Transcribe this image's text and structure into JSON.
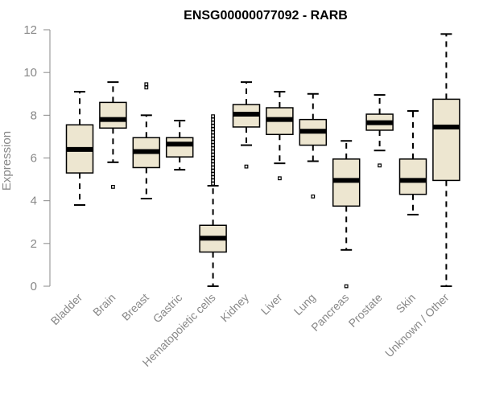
{
  "chart_data": {
    "type": "boxplot",
    "title": "ENSG00000077092 - RARB",
    "xlabel": "",
    "ylabel": "Expression",
    "ylim": [
      0,
      12
    ],
    "yticks": [
      0,
      2,
      4,
      6,
      8,
      10,
      12
    ],
    "box_fill": "#ede6d0",
    "box_stroke": "#000000",
    "categories": [
      "Bladder",
      "Brain",
      "Breast",
      "Gastric",
      "Hematopoietic cells",
      "Kidney",
      "Liver",
      "Lung",
      "Pancreas",
      "Prostate",
      "Skin",
      "Unknown / Other"
    ],
    "boxes": [
      {
        "category": "Bladder",
        "whisker_low": 3.8,
        "q1": 5.3,
        "median": 6.4,
        "q3": 7.55,
        "whisker_high": 9.1,
        "outliers": []
      },
      {
        "category": "Brain",
        "whisker_low": 5.8,
        "q1": 7.4,
        "median": 7.8,
        "q3": 8.6,
        "whisker_high": 9.55,
        "outliers": [
          4.65
        ]
      },
      {
        "category": "Breast",
        "whisker_low": 4.1,
        "q1": 5.55,
        "median": 6.3,
        "q3": 6.95,
        "whisker_high": 8.0,
        "outliers": [
          9.3,
          9.45
        ]
      },
      {
        "category": "Gastric",
        "whisker_low": 5.45,
        "q1": 6.05,
        "median": 6.65,
        "q3": 6.95,
        "whisker_high": 7.75,
        "outliers": []
      },
      {
        "category": "Hematopoietic cells",
        "whisker_low": 0.0,
        "q1": 1.6,
        "median": 2.25,
        "q3": 2.85,
        "whisker_high": 4.7,
        "outliers": [
          4.8,
          4.95,
          5.1,
          5.25,
          5.4,
          5.55,
          5.7,
          5.85,
          6.0,
          6.15,
          6.3,
          6.45,
          6.6,
          6.75,
          6.9,
          7.05,
          7.2,
          7.35,
          7.5,
          7.65,
          7.8,
          7.95
        ]
      },
      {
        "category": "Kidney",
        "whisker_low": 6.6,
        "q1": 7.45,
        "median": 8.05,
        "q3": 8.5,
        "whisker_high": 9.55,
        "outliers": [
          5.6
        ]
      },
      {
        "category": "Liver",
        "whisker_low": 5.75,
        "q1": 7.1,
        "median": 7.8,
        "q3": 8.35,
        "whisker_high": 9.1,
        "outliers": [
          5.05
        ]
      },
      {
        "category": "Lung",
        "whisker_low": 5.85,
        "q1": 6.6,
        "median": 7.25,
        "q3": 7.8,
        "whisker_high": 9.0,
        "outliers": [
          4.2
        ]
      },
      {
        "category": "Pancreas",
        "whisker_low": 1.7,
        "q1": 3.75,
        "median": 4.95,
        "q3": 5.95,
        "whisker_high": 6.8,
        "outliers": [
          0.0
        ]
      },
      {
        "category": "Prostate",
        "whisker_low": 6.35,
        "q1": 7.3,
        "median": 7.65,
        "q3": 8.05,
        "whisker_high": 8.95,
        "outliers": [
          5.65
        ]
      },
      {
        "category": "Skin",
        "whisker_low": 3.35,
        "q1": 4.3,
        "median": 4.95,
        "q3": 5.95,
        "whisker_high": 8.2,
        "outliers": []
      },
      {
        "category": "Unknown / Other",
        "whisker_low": 0.0,
        "q1": 4.95,
        "median": 7.45,
        "q3": 8.75,
        "whisker_high": 11.8,
        "outliers": []
      }
    ]
  }
}
